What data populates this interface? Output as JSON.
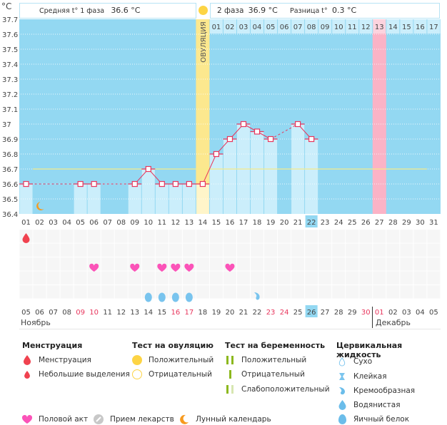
{
  "header": {
    "unit_label": "°C",
    "phase1_label": "Средняя t° 1 фаза",
    "phase1_value": "36.6 °C",
    "phase2_label": "2 фаза",
    "phase2_value": "36.9 °C",
    "diff_label": "Разница t°",
    "diff_value": "0.3 °C",
    "ovulation_label": "ОВУЛЯЦИЯ"
  },
  "colors": {
    "plot_bg": "#93d8f2",
    "bar_fill": "#cbeefb",
    "ovulation": "#fce88e",
    "ovulation_light": "#fff5c9",
    "highlight_pink": "#fbb3c6",
    "line": "#e8365d",
    "avg_line": "#f5ec8a",
    "today": "#93d8f2",
    "weekend_red": "#e8365d"
  },
  "chart_data": {
    "type": "line",
    "title": "",
    "ylabel": "°C",
    "xlabel": "",
    "ylim": [
      36.4,
      37.7
    ],
    "yticks": [
      "37.7",
      "37.6",
      "37.5",
      "37.4",
      "37.3",
      "37.2",
      "37.1",
      "37",
      "36.9",
      "36.8",
      "36.7",
      "36.6",
      "36.5",
      "36.4"
    ],
    "cycle_days": [
      "01",
      "02",
      "03",
      "04",
      "05",
      "06",
      "07",
      "08",
      "09",
      "10",
      "11",
      "12",
      "13",
      "14",
      "15",
      "16",
      "17",
      "18",
      "19",
      "20",
      "21",
      "22",
      "23",
      "24",
      "25",
      "26",
      "27",
      "28",
      "29",
      "30",
      "31"
    ],
    "luteal_days": [
      "01",
      "02",
      "03",
      "04",
      "05",
      "06",
      "07",
      "08",
      "09",
      "10",
      "11",
      "12",
      "13",
      "14",
      "15",
      "16",
      "17"
    ],
    "calendar_dates": [
      "05",
      "06",
      "07",
      "08",
      "09",
      "10",
      "11",
      "12",
      "13",
      "14",
      "15",
      "16",
      "17",
      "18",
      "19",
      "20",
      "21",
      "22",
      "23",
      "24",
      "25",
      "26",
      "27",
      "28",
      "29",
      "30",
      "01",
      "02",
      "03",
      "04",
      "05"
    ],
    "red_dates_idx": [
      4,
      5,
      11,
      12,
      18,
      19,
      25,
      26
    ],
    "months": [
      "Ноябрь",
      "Декабрь"
    ],
    "today_cycle_day": "22",
    "today_date": "26",
    "ovulation_day": 14,
    "expected_period_day": 27,
    "series": [
      {
        "name": "Базальная температура",
        "values": [
          36.6,
          null,
          null,
          null,
          36.6,
          36.6,
          null,
          null,
          36.6,
          36.7,
          36.6,
          36.6,
          36.6,
          36.6,
          36.8,
          36.9,
          37.0,
          36.95,
          36.9,
          null,
          37.0,
          36.9,
          null,
          null,
          null,
          null,
          null,
          null,
          null,
          null,
          null
        ]
      }
    ],
    "average_line": 36.7,
    "average_line_range": [
      2,
      30
    ],
    "events": {
      "menstruation": [
        1
      ],
      "intercourse": [
        6,
        9,
        11,
        12,
        13,
        16
      ],
      "egg_white": [
        10,
        11,
        12,
        13
      ],
      "creamy": [
        18
      ],
      "lunar": [
        2
      ]
    }
  },
  "legend": {
    "menstruation": {
      "title": "Менструация",
      "items": [
        "Менструация",
        "Небольшие выделения"
      ]
    },
    "ovulation_test": {
      "title": "Тест на овуляцию",
      "items": [
        "Положительный",
        "Отрицательный"
      ]
    },
    "pregnancy_test": {
      "title": "Тест на беременность",
      "items": [
        "Положительный",
        "Отрицательный",
        "Слабоположительный"
      ]
    },
    "cervical": {
      "title": "Цервикальная жидкость",
      "items": [
        "Сухо",
        "Клейкая",
        "Кремообразная",
        "Водянистая",
        "Яичный белок"
      ]
    },
    "other": [
      "Половой акт",
      "Прием лекарств",
      "Лунный календарь"
    ]
  }
}
